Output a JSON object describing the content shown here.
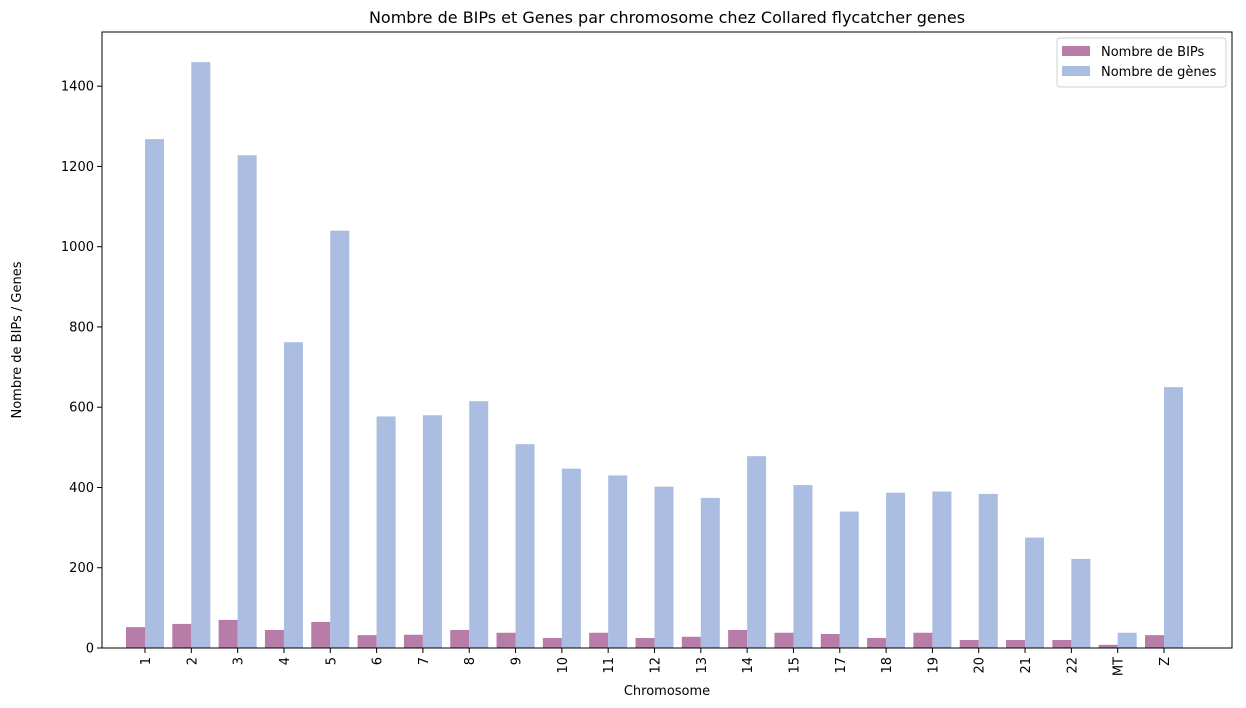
{
  "chart_data": {
    "type": "bar",
    "title": "Nombre de BIPs et Genes par chromosome chez Collared flycatcher genes",
    "xlabel": "Chromosome",
    "ylabel": "Nombre de BIPs / Genes",
    "ylim": [
      0,
      1535
    ],
    "yticks": [
      0,
      200,
      400,
      600,
      800,
      1000,
      1200,
      1400
    ],
    "categories": [
      "1",
      "2",
      "3",
      "4",
      "5",
      "6",
      "7",
      "8",
      "9",
      "10",
      "11",
      "12",
      "13",
      "14",
      "15",
      "17",
      "18",
      "19",
      "20",
      "21",
      "22",
      "MT",
      "Z"
    ],
    "series": [
      {
        "name": "Nombre de BIPs",
        "color": "#b77ca8",
        "values": [
          52,
          60,
          70,
          45,
          65,
          32,
          33,
          45,
          38,
          25,
          38,
          25,
          28,
          45,
          38,
          35,
          25,
          38,
          20,
          20,
          20,
          8,
          32
        ]
      },
      {
        "name": "Nombre de gènes",
        "color": "#abbde0",
        "values": [
          1268,
          1460,
          1228,
          762,
          1040,
          577,
          580,
          615,
          508,
          447,
          430,
          402,
          374,
          478,
          406,
          340,
          387,
          390,
          384,
          275,
          222,
          38,
          650
        ]
      }
    ],
    "legend_position": "top-right",
    "grid": false
  }
}
